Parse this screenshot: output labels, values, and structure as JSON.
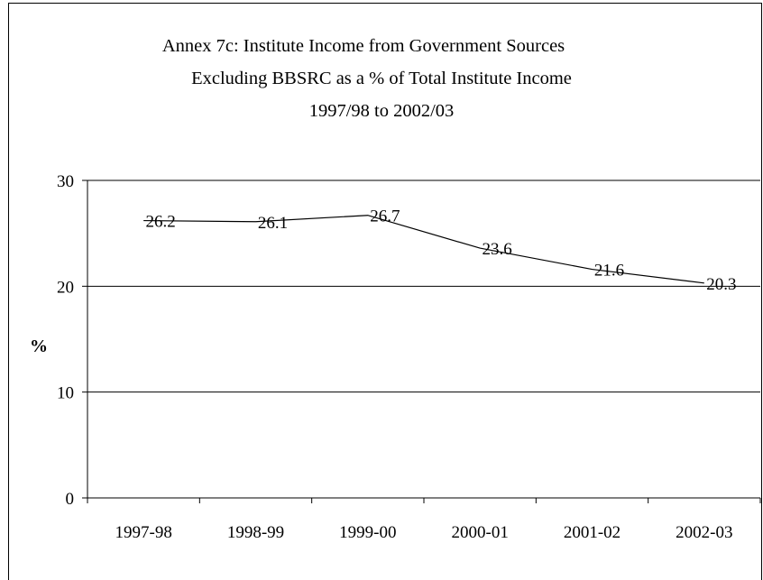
{
  "chart_data": {
    "type": "line",
    "title_lines": [
      "Annex 7c: Institute Income from Government Sources",
      "Excluding BBSRC as a % of Total Institute Income",
      "1997/98 to 2002/03"
    ],
    "categories": [
      "1997-98",
      "1998-99",
      "1999-00",
      "2000-01",
      "2001-02",
      "2002-03"
    ],
    "series": [
      {
        "values": [
          26.2,
          26.1,
          26.7,
          23.6,
          21.6,
          20.3
        ],
        "labels": [
          "26.2",
          "26.1",
          "26.7",
          "23.6",
          "21.6",
          "20.3"
        ]
      }
    ],
    "ylabel": "%",
    "xlabel": "",
    "ylim": [
      0,
      30
    ],
    "yticks": [
      0,
      10,
      20,
      30
    ],
    "ytick_labels": [
      "0",
      "10",
      "20",
      "30"
    ],
    "grid": true,
    "legend": "none",
    "colors": {
      "line": "#000000",
      "grid": "#000000"
    }
  }
}
